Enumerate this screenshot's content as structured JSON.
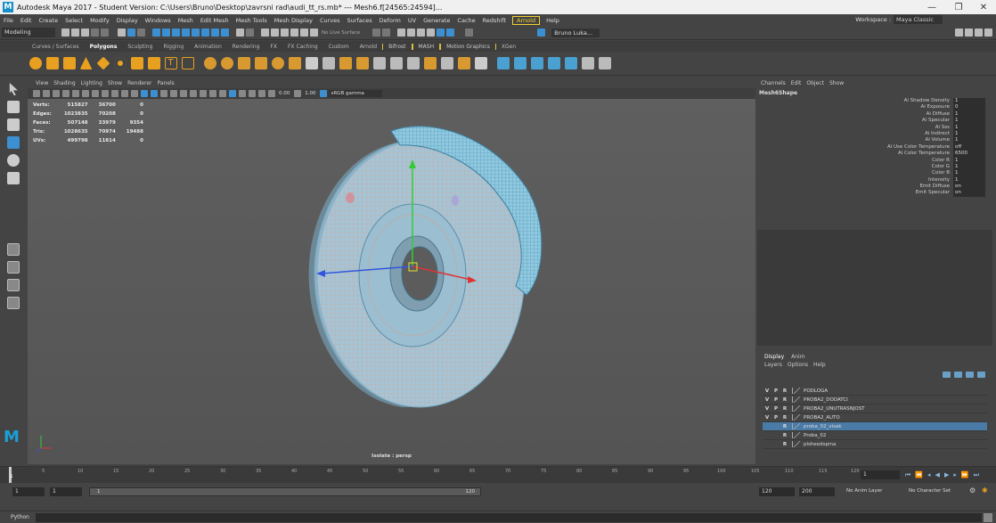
{
  "window": {
    "title": "Autodesk Maya 2017 - Student Version: C:\\Users\\Bruno\\Desktop\\zavrsni rad\\audi_tt_rs.mb*  ---  Mesh6.f[24565:24594]...",
    "minimize": "—",
    "maximize": "❐",
    "close": "✕"
  },
  "menubar": {
    "items": [
      "File",
      "Edit",
      "Create",
      "Select",
      "Modify",
      "Display",
      "Windows",
      "Mesh",
      "Edit Mesh",
      "Mesh Tools",
      "Mesh Display",
      "Curves",
      "Surfaces",
      "Deform",
      "UV",
      "Generate",
      "Cache",
      "Redshift"
    ],
    "arnold": "Arnold",
    "help": "Help",
    "workspace_label": "Workspace :",
    "workspace_value": "Maya Classic"
  },
  "statusline": {
    "mode": "Modeling",
    "live_surface": "No Live Surface",
    "user": "Bruno Luka..."
  },
  "shelf_tabs": [
    "Curves / Surfaces",
    "Polygons",
    "Sculpting",
    "Rigging",
    "Animation",
    "Rendering",
    "FX",
    "FX Caching",
    "Custom",
    "Arnold",
    "Bifrost",
    "MASH",
    "Motion Graphics",
    "XGen"
  ],
  "shelf_active_tab": "Polygons",
  "panel": {
    "menu": [
      "View",
      "Shading",
      "Lighting",
      "Show",
      "Renderer",
      "Panels"
    ],
    "exposure": "0.00",
    "gamma": "1.00",
    "color_space": "sRGB gamma"
  },
  "hud": {
    "rows": [
      {
        "label": "Verts:",
        "a": "515827",
        "b": "36700",
        "c": "0"
      },
      {
        "label": "Edges:",
        "a": "1023835",
        "b": "70208",
        "c": "0"
      },
      {
        "label": "Faces:",
        "a": "507148",
        "b": "33979",
        "c": "9354"
      },
      {
        "label": "Tris:",
        "a": "1028635",
        "b": "70974",
        "c": "19488"
      },
      {
        "label": "UVs:",
        "a": "499798",
        "b": "11814",
        "c": "0"
      }
    ]
  },
  "viewport": {
    "isolate_label": "Isolate : persp"
  },
  "channelbox": {
    "menu": [
      "Channels",
      "Edit",
      "Object",
      "Show"
    ],
    "node": "Mesh6Shape",
    "attributes": [
      {
        "name": "Ai Shadow Density",
        "value": "1"
      },
      {
        "name": "Ai Exposure",
        "value": "0"
      },
      {
        "name": "Ai Diffuse",
        "value": "1"
      },
      {
        "name": "Ai Specular",
        "value": "1"
      },
      {
        "name": "Ai Sss",
        "value": "1"
      },
      {
        "name": "Ai Indirect",
        "value": "1"
      },
      {
        "name": "Ai Volume",
        "value": "1"
      },
      {
        "name": "Ai Use Color Temperature",
        "value": "off"
      },
      {
        "name": "Ai Color Temperature",
        "value": "6500"
      },
      {
        "name": "Color R",
        "value": "1"
      },
      {
        "name": "Color G",
        "value": "1"
      },
      {
        "name": "Color B",
        "value": "1"
      },
      {
        "name": "Intensity",
        "value": "1"
      },
      {
        "name": "Emit Diffuse",
        "value": "on"
      },
      {
        "name": "Emit Specular",
        "value": "on"
      }
    ]
  },
  "layers": {
    "tabs": [
      "Display",
      "Anim"
    ],
    "menu": [
      "Layers",
      "Options",
      "Help"
    ],
    "items": [
      {
        "v": "V",
        "p": "P",
        "r": "R",
        "name": "PODLOGA",
        "selected": false
      },
      {
        "v": "V",
        "p": "P",
        "r": "R",
        "name": "PROBA2_DODATCI",
        "selected": false
      },
      {
        "v": "V",
        "p": "P",
        "r": "R",
        "name": "PROBA2_UNUTRASNJOST",
        "selected": false
      },
      {
        "v": "V",
        "p": "P",
        "r": "R",
        "name": "PROBA2_AUTO",
        "selected": false
      },
      {
        "v": "",
        "p": "",
        "r": "R",
        "name": "proba_02_visak",
        "selected": true
      },
      {
        "v": "",
        "p": "",
        "r": "R",
        "name": "Proba_02",
        "selected": false
      },
      {
        "v": "",
        "p": "",
        "r": "R",
        "name": "plsheodspina",
        "selected": false
      }
    ]
  },
  "timeline": {
    "ticks": [
      "5",
      "10",
      "15",
      "20",
      "25",
      "30",
      "35",
      "40",
      "45",
      "50",
      "55",
      "60",
      "65",
      "70",
      "75",
      "80",
      "85",
      "90",
      "95",
      "100",
      "105",
      "110",
      "115",
      "120"
    ],
    "current_frame": "1"
  },
  "range": {
    "start": "1",
    "inner_start": "1",
    "inner_field": "1",
    "inner_end": "120",
    "end": "120",
    "anim_end": "200",
    "anim_layer": "No Anim Layer",
    "character_set": "No Character Set"
  },
  "cmdline": {
    "label": "Python"
  }
}
